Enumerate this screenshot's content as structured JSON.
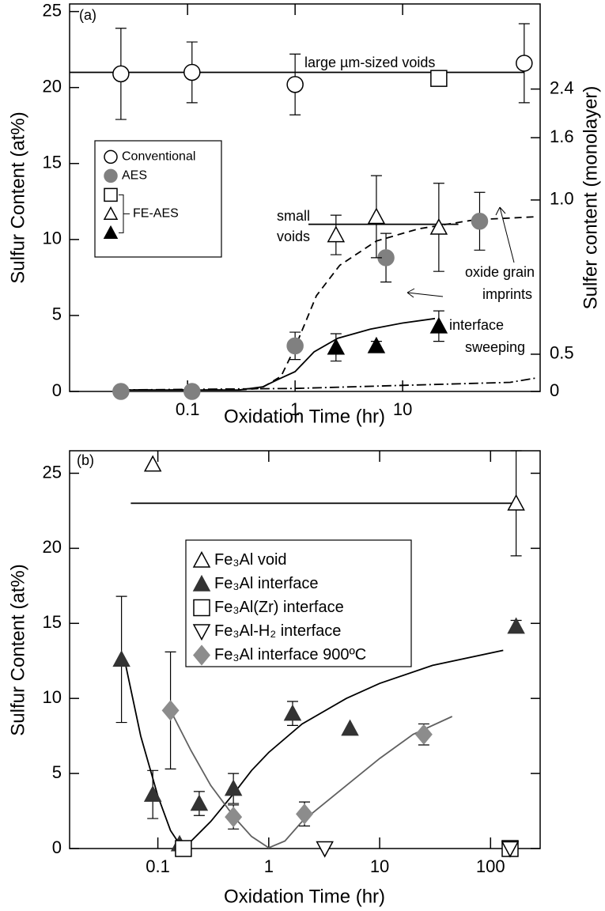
{
  "chart_data": [
    {
      "type": "scatter",
      "label": "(a)",
      "xlabel": "Oxidation Time (hr)",
      "ylabel": "Sulfur Content (at%)",
      "y2label": "Sulfer content (monolayer)",
      "xscale": "log",
      "xlim": [
        0.008,
        190
      ],
      "xticks": [
        0.1,
        1,
        10
      ],
      "ylim": [
        0,
        25.5
      ],
      "yticks": [
        0,
        5,
        10,
        15,
        20,
        25
      ],
      "y2ticks": [
        0,
        {
          "value": 2.45,
          "label": "0.5"
        },
        {
          "value": 12.6,
          "label": "1.0"
        },
        {
          "value": 16.7,
          "label": "1.6"
        },
        {
          "value": 19.9,
          "label": "2.4"
        }
      ],
      "annotations": [
        "large µm-sized voids",
        "small",
        "voids",
        "oxide grain",
        "imprints",
        "interface",
        "sweeping"
      ],
      "legend_groups": [
        {
          "name": "FE-AES",
          "markers": [
            "square",
            "triangle",
            "triangle-filled"
          ]
        }
      ],
      "series": [
        {
          "name": "Conventional",
          "marker": "circle",
          "color": "#000000",
          "x": [
            0.024,
            0.11,
            1,
            135
          ],
          "values": [
            20.9,
            21.0,
            20.2,
            21.6
          ],
          "errors": [
            3,
            2,
            2,
            2.6
          ]
        },
        {
          "name": "AES",
          "marker": "circle-filled",
          "color": "#808080",
          "x": [
            0.024,
            0.11,
            1,
            7,
            52
          ],
          "values": [
            0,
            0,
            3.0,
            8.8,
            11.2
          ],
          "errors": [
            null,
            null,
            0.9,
            1.6,
            1.9
          ]
        },
        {
          "marker": "square",
          "color": "#000000",
          "x": [
            21.7
          ],
          "values": [
            20.6
          ],
          "errors": [
            null
          ]
        },
        {
          "marker": "triangle",
          "color": "#000000",
          "x": [
            2.4,
            5.7,
            21.7
          ],
          "values": [
            10.3,
            11.5,
            10.8
          ],
          "errors": [
            1.3,
            2.7,
            2.9
          ]
        },
        {
          "marker": "triangle-filled",
          "color": "#000000",
          "x": [
            2.4,
            5.7,
            21.7
          ],
          "values": [
            2.9,
            3.0,
            4.3
          ],
          "errors": [
            0.9,
            0.3,
            1.0
          ]
        },
        {
          "style": "solid",
          "color": "#000000",
          "x": [
            0.008,
            135
          ],
          "values": [
            21.0,
            21.0
          ]
        },
        {
          "style": "solid",
          "color": "#000000",
          "x": [
            1.33,
            33
          ],
          "values": [
            11,
            11
          ]
        },
        {
          "style": "dashed",
          "color": "#000000",
          "x": [
            0.024,
            0.3,
            0.48,
            0.74,
            1,
            1.58,
            2.6,
            5.7,
            14,
            47,
            180
          ],
          "values": [
            0.1,
            0.1,
            0.2,
            1.0,
            2.9,
            6.3,
            8.3,
            9.9,
            10.7,
            11.3,
            11.5
          ]
        },
        {
          "style": "solid",
          "color": "#000000",
          "x": [
            0.024,
            0.3,
            0.5,
            0.7,
            1,
            1.5,
            2.5,
            5,
            10,
            20
          ],
          "values": [
            0.1,
            0.1,
            0.3,
            0.8,
            1.3,
            2.6,
            3.5,
            4.1,
            4.5,
            4.8
          ]
        },
        {
          "style": "dashdot",
          "color": "#000000",
          "x": [
            0.024,
            1,
            10,
            100,
            180
          ],
          "values": [
            0.1,
            0.2,
            0.4,
            0.6,
            0.9
          ]
        }
      ]
    },
    {
      "type": "scatter",
      "label": "(b)",
      "xlabel": "Oxidation Time (hr)",
      "ylabel": "Sulfur Content (at%)",
      "xscale": "log",
      "xlim": [
        0.016,
        280
      ],
      "xticks": [
        0.1,
        1,
        10,
        100
      ],
      "ylim": [
        0,
        26.5
      ],
      "yticks": [
        0,
        5,
        10,
        15,
        20,
        25
      ],
      "series": [
        {
          "name": "Fe₃Al void",
          "marker": "triangle",
          "color": "#000000",
          "x": [
            0.09,
            170
          ],
          "values": [
            25.6,
            23.0
          ],
          "errors": [
            null,
            3.5
          ]
        },
        {
          "name": "Fe₃Al interface",
          "marker": "triangle-filled",
          "color": "#333333",
          "x": [
            0.047,
            0.09,
            0.157,
            0.236,
            0.48,
            1.64,
            5.4,
            170
          ],
          "values": [
            12.6,
            3.6,
            0.3,
            3.0,
            4.0,
            9.0,
            8.0,
            14.8
          ],
          "errors": [
            4.2,
            1.6,
            null,
            0.8,
            1.0,
            0.8,
            null,
            0.4
          ]
        },
        {
          "name": "Fe₃Al(Zr) interface",
          "marker": "square",
          "color": "#000000",
          "x": [
            0.17,
            150
          ],
          "values": [
            0,
            0
          ],
          "errors": [
            null,
            null
          ]
        },
        {
          "name": "Fe₃Al-H₂ interface",
          "marker": "triangle-down",
          "color": "#000000",
          "x": [
            3.2,
            150
          ],
          "values": [
            0,
            0
          ],
          "errors": [
            null,
            null
          ]
        },
        {
          "name": "Fe₃Al interface 900ºC",
          "marker": "diamond-filled",
          "color": "#8c8c8c",
          "x": [
            0.13,
            0.48,
            2.1,
            25
          ],
          "values": [
            9.2,
            2.1,
            2.3,
            7.6
          ],
          "errors": [
            3.9,
            0.8,
            0.8,
            0.7
          ]
        },
        {
          "style": "solid",
          "color": "#000000",
          "x": [
            0.057,
            170
          ],
          "values": [
            23,
            23
          ]
        },
        {
          "style": "solid",
          "color": "#000000",
          "x": [
            0.05,
            0.07,
            0.1,
            0.13,
            0.16,
            0.2,
            0.3,
            0.5,
            0.7,
            1,
            2,
            5,
            10,
            30,
            130
          ],
          "values": [
            12.6,
            7.5,
            3.5,
            1.2,
            0.2,
            0.5,
            1.8,
            3.8,
            5.2,
            6.4,
            8.3,
            10.0,
            11.0,
            12.2,
            13.2
          ]
        },
        {
          "style": "solid",
          "color": "#606060",
          "x": [
            0.13,
            0.2,
            0.3,
            0.5,
            0.7,
            1,
            1.4,
            2,
            5,
            10,
            20,
            45
          ],
          "values": [
            9.2,
            6.5,
            4.2,
            2.0,
            0.8,
            0.05,
            0.5,
            1.8,
            4.2,
            6.0,
            7.6,
            8.8
          ]
        }
      ]
    }
  ]
}
